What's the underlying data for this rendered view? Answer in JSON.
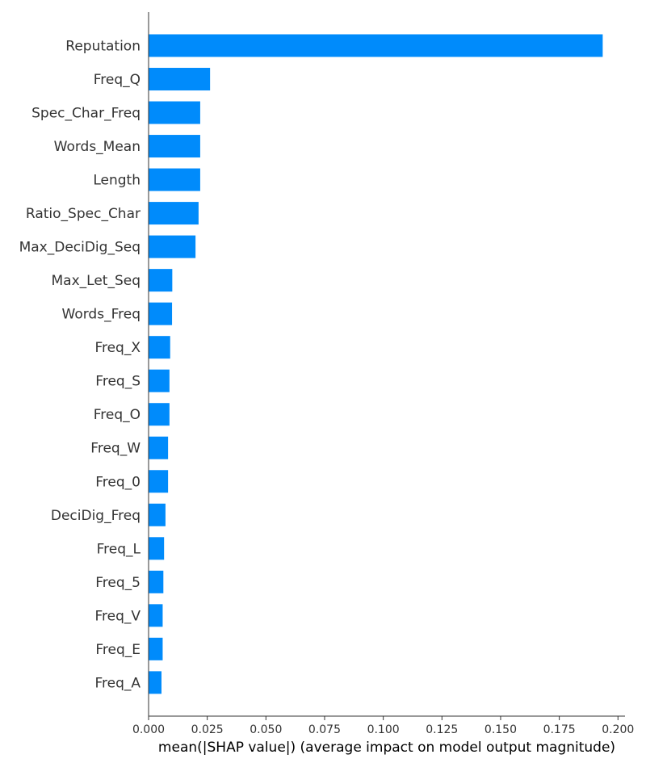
{
  "chart_data": {
    "type": "bar",
    "orientation": "horizontal",
    "categories": [
      "Reputation",
      "Freq_Q",
      "Spec_Char_Freq",
      "Words_Mean",
      "Length",
      "Ratio_Spec_Char",
      "Max_DeciDig_Seq",
      "Max_Let_Seq",
      "Words_Freq",
      "Freq_X",
      "Freq_S",
      "Freq_O",
      "Freq_W",
      "Freq_0",
      "DeciDig_Freq",
      "Freq_L",
      "Freq_5",
      "Freq_V",
      "Freq_E",
      "Freq_A"
    ],
    "values": [
      0.1935,
      0.0262,
      0.022,
      0.022,
      0.022,
      0.0213,
      0.02,
      0.0101,
      0.01,
      0.0092,
      0.0089,
      0.0089,
      0.0083,
      0.0083,
      0.0072,
      0.0066,
      0.0063,
      0.006,
      0.006,
      0.0055
    ],
    "xlabel": "mean(|SHAP value|) (average impact on model output magnitude)",
    "xlim": [
      0,
      0.203
    ],
    "xticks": [
      "0.000",
      "0.025",
      "0.050",
      "0.075",
      "0.100",
      "0.125",
      "0.150",
      "0.175",
      "0.200"
    ],
    "bar_color": "#008bfb",
    "grid": false
  }
}
